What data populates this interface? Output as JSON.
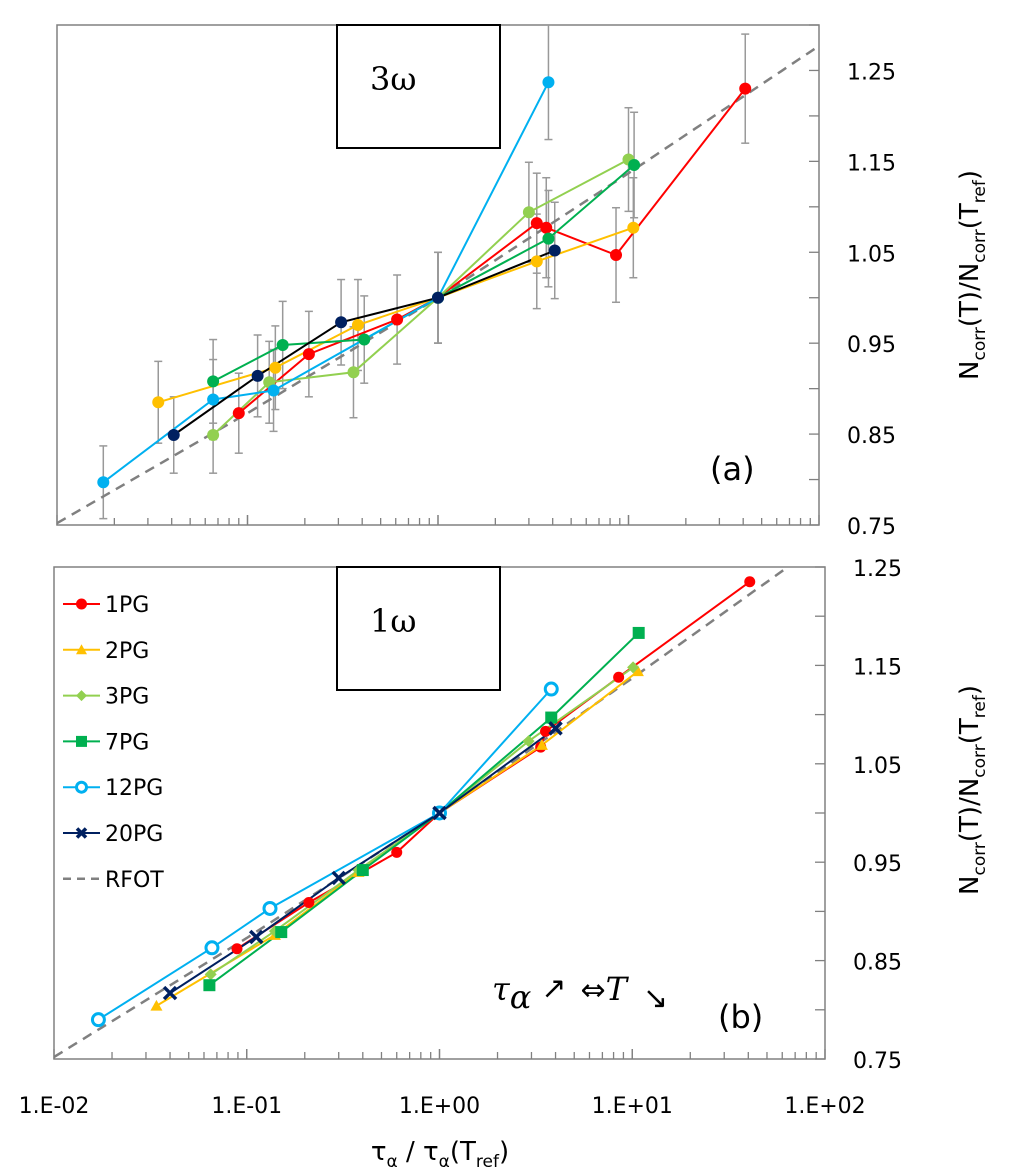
{
  "chart_data": [
    {
      "id": "a",
      "type": "line",
      "panel_label": "(a)",
      "title": "3ω",
      "xlabel": "",
      "ylabel": "N_corr(T)/N_corr(T_ref)",
      "xscale": "log",
      "xlim": [
        0.01,
        100
      ],
      "ylim": [
        0.75,
        1.3
      ],
      "yticks": [
        0.75,
        0.85,
        0.95,
        1.05,
        1.15,
        1.25
      ],
      "ytick_labels": [
        "0.75",
        "0.85",
        "0.95",
        "1.05",
        "1.15",
        "1.25"
      ],
      "grid": false,
      "error_bars": true,
      "series": [
        {
          "name": "1PG",
          "color": "#ff0000",
          "marker": "circle",
          "x": [
            0.09,
            0.21,
            0.61,
            1.0,
            3.3,
            3.7,
            8.6,
            41
          ],
          "y": [
            0.873,
            0.938,
            0.976,
            1.0,
            1.082,
            1.077,
            1.047,
            1.23
          ],
          "err": [
            0.044,
            0.047,
            0.049,
            0.05,
            0.055,
            0.055,
            0.052,
            0.06
          ]
        },
        {
          "name": "2PG",
          "color": "#ffc000",
          "marker": "circle",
          "x": [
            0.034,
            0.14,
            0.38,
            1.0,
            3.3,
            10.6
          ],
          "y": [
            0.885,
            0.923,
            0.97,
            1.0,
            1.04,
            1.077
          ],
          "err": [
            0.045,
            0.046,
            0.05,
            0.05,
            0.052,
            0.055
          ]
        },
        {
          "name": "3PG",
          "color": "#92d050",
          "marker": "circle",
          "x": [
            0.066,
            0.13,
            0.36,
            1.0,
            3.0,
            10.0
          ],
          "y": [
            0.849,
            0.907,
            0.918,
            1.0,
            1.094,
            1.152
          ],
          "err": [
            0.042,
            0.045,
            0.05,
            0.05,
            0.055,
            0.057
          ]
        },
        {
          "name": "7PG",
          "color": "#00b050",
          "marker": "circle",
          "x": [
            0.066,
            0.153,
            0.41,
            1.0,
            3.8,
            10.7
          ],
          "y": [
            0.908,
            0.948,
            0.954,
            1.0,
            1.065,
            1.146
          ],
          "err": [
            0.046,
            0.048,
            0.048,
            0.05,
            0.053,
            0.058
          ]
        },
        {
          "name": "12PG",
          "color": "#00b0f0",
          "marker": "circle",
          "x": [
            0.0175,
            0.066,
            0.137,
            1.0,
            3.8
          ],
          "y": [
            0.797,
            0.888,
            0.898,
            1.0,
            1.237
          ],
          "err": [
            0.04,
            0.044,
            0.045,
            0.05,
            0.063
          ]
        },
        {
          "name": "20PG",
          "color": "#002060",
          "line_color": "#000000",
          "marker": "circle",
          "x": [
            0.041,
            0.113,
            0.31,
            1.0,
            4.1
          ],
          "y": [
            0.849,
            0.914,
            0.973,
            1.0,
            1.052
          ],
          "err": [
            0.042,
            0.045,
            0.047,
            0.05,
            0.053
          ]
        },
        {
          "name": "RFOT",
          "color": "#808080",
          "marker": "none",
          "dashed": true,
          "x": [
            0.01,
            0.1,
            1.0,
            10,
            100
          ],
          "y": [
            0.752,
            0.873,
            1.0,
            1.137,
            1.277
          ]
        }
      ]
    },
    {
      "id": "b",
      "type": "line",
      "panel_label": "(b)",
      "title": "1ω",
      "xlabel": "τα / τα(Tref)",
      "ylabel": "N_corr(T)/N_corr(T_ref)",
      "xscale": "log",
      "xlim": [
        0.01,
        100
      ],
      "ylim": [
        0.75,
        1.25
      ],
      "xticks": [
        0.01,
        0.1,
        1,
        10,
        100
      ],
      "xtick_labels": [
        "1.E-02",
        "1.E-01",
        "1.E+00",
        "1.E+01",
        "1.E+02"
      ],
      "yticks": [
        0.75,
        0.85,
        0.95,
        1.05,
        1.15,
        1.25
      ],
      "ytick_labels": [
        "0.75",
        "0.85",
        "0.95",
        "1.05",
        "1.15",
        "1.25"
      ],
      "grid": false,
      "legend_position": "top-left",
      "annotation": "τα ↗ ⇔ T ↘",
      "series": [
        {
          "name": "1PG",
          "color": "#ff0000",
          "marker": "circle",
          "x": [
            0.089,
            0.21,
            0.6,
            1.0,
            3.35,
            3.55,
            8.5,
            40.7
          ],
          "y": [
            0.862,
            0.909,
            0.96,
            1.0,
            1.067,
            1.083,
            1.138,
            1.235
          ]
        },
        {
          "name": "2PG",
          "color": "#ffc000",
          "marker": "triangle",
          "x": [
            0.034,
            0.14,
            0.38,
            1.0,
            3.4,
            10.7
          ],
          "y": [
            0.804,
            0.876,
            0.94,
            1.0,
            1.069,
            1.144
          ]
        },
        {
          "name": "3PG",
          "color": "#92d050",
          "marker": "diamond",
          "x": [
            0.065,
            0.14,
            0.38,
            1.0,
            2.9,
            10.1
          ],
          "y": [
            0.836,
            0.88,
            0.942,
            1.0,
            1.073,
            1.148
          ]
        },
        {
          "name": "7PG",
          "color": "#00b050",
          "marker": "square",
          "x": [
            0.064,
            0.151,
            0.4,
            1.0,
            3.8,
            10.8
          ],
          "y": [
            0.825,
            0.879,
            0.942,
            1.0,
            1.097,
            1.183
          ]
        },
        {
          "name": "12PG",
          "color": "#00b0f0",
          "marker": "open-circle",
          "x": [
            0.017,
            0.066,
            0.132,
            1.0,
            3.8
          ],
          "y": [
            0.79,
            0.863,
            0.903,
            1.0,
            1.126
          ]
        },
        {
          "name": "20PG",
          "color": "#002060",
          "marker": "x",
          "x": [
            0.04,
            0.112,
            0.3,
            1.0,
            4.0
          ],
          "y": [
            0.817,
            0.874,
            0.934,
            1.0,
            1.086
          ]
        },
        {
          "name": "RFOT",
          "color": "#808080",
          "marker": "none",
          "dashed": true,
          "x": [
            0.01,
            0.1,
            1.0,
            10,
            100
          ],
          "y": [
            0.752,
            0.873,
            1.0,
            1.137,
            1.277
          ]
        }
      ]
    }
  ],
  "legend": {
    "entries": [
      {
        "label": "1PG",
        "color": "#ff0000",
        "marker": "circle"
      },
      {
        "label": "2PG",
        "color": "#ffc000",
        "marker": "triangle"
      },
      {
        "label": "3PG",
        "color": "#92d050",
        "marker": "diamond"
      },
      {
        "label": "7PG",
        "color": "#00b050",
        "marker": "square"
      },
      {
        "label": "12PG",
        "color": "#00b0f0",
        "marker": "open-circle"
      },
      {
        "label": "20PG",
        "color": "#002060",
        "marker": "x"
      },
      {
        "label": "RFOT",
        "color": "#808080",
        "marker": "dash"
      }
    ]
  },
  "labels": {
    "freq_a": "3ω",
    "freq_b": "1ω",
    "panel_a": "(a)",
    "panel_b": "(b)",
    "ylabel_main": "N",
    "ylabel_sub1": "corr",
    "ylabel_mid": "(T)/N",
    "ylabel_sub2": "corr",
    "ylabel_mid2": "(T",
    "ylabel_sub3": "ref",
    "ylabel_end": ")",
    "xlabel_main": "τ",
    "xlabel_sub1": "α",
    "xlabel_mid": " / τ",
    "xlabel_sub2": "α",
    "xlabel_mid2": "(T",
    "xlabel_sub3": "ref",
    "xlabel_end": ")",
    "annot_tau": "τ",
    "annot_alpha": "α",
    "annot_up": "↗",
    "annot_equiv": "⇔",
    "annot_T": "T",
    "annot_down": "↘"
  }
}
